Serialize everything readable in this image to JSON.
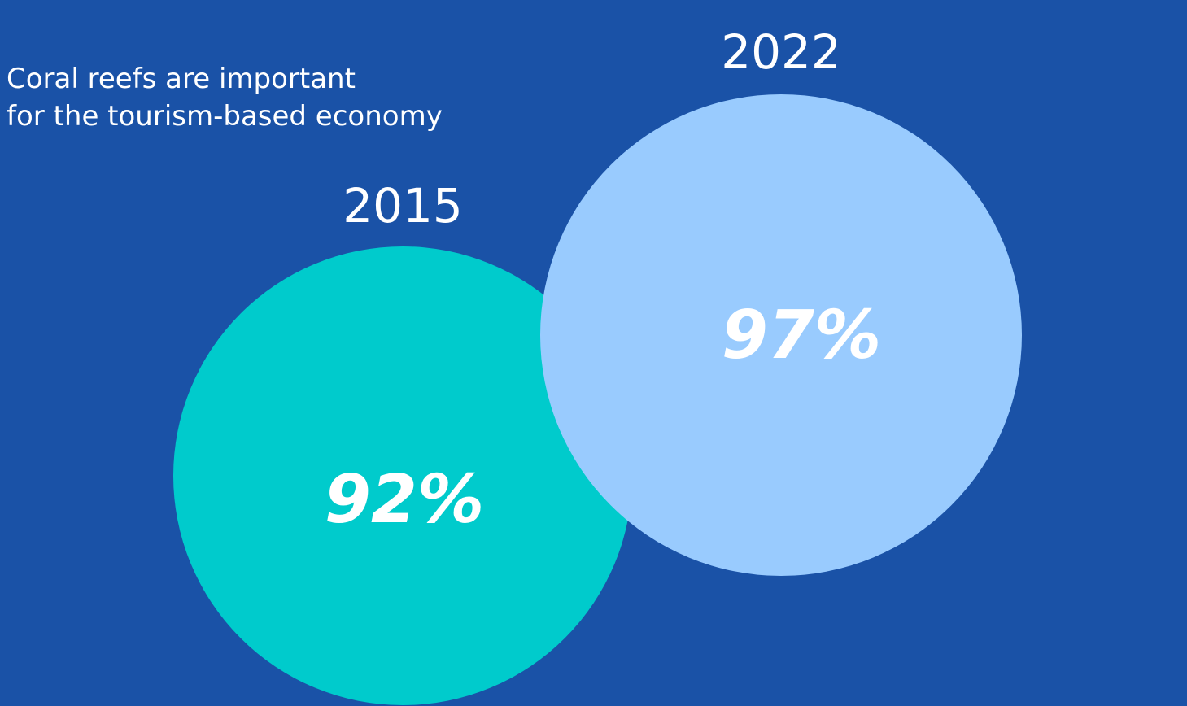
{
  "subtitle": {
    "line1": "Coral reefs are important",
    "line2": "for the tourism-based economy"
  },
  "chart_data": {
    "type": "bubble",
    "series": [
      {
        "year": "2015",
        "value": 92,
        "label": "92%",
        "color": "#00cbcc"
      },
      {
        "year": "2022",
        "value": 97,
        "label": "97%",
        "color": "#99cbfe"
      }
    ]
  }
}
